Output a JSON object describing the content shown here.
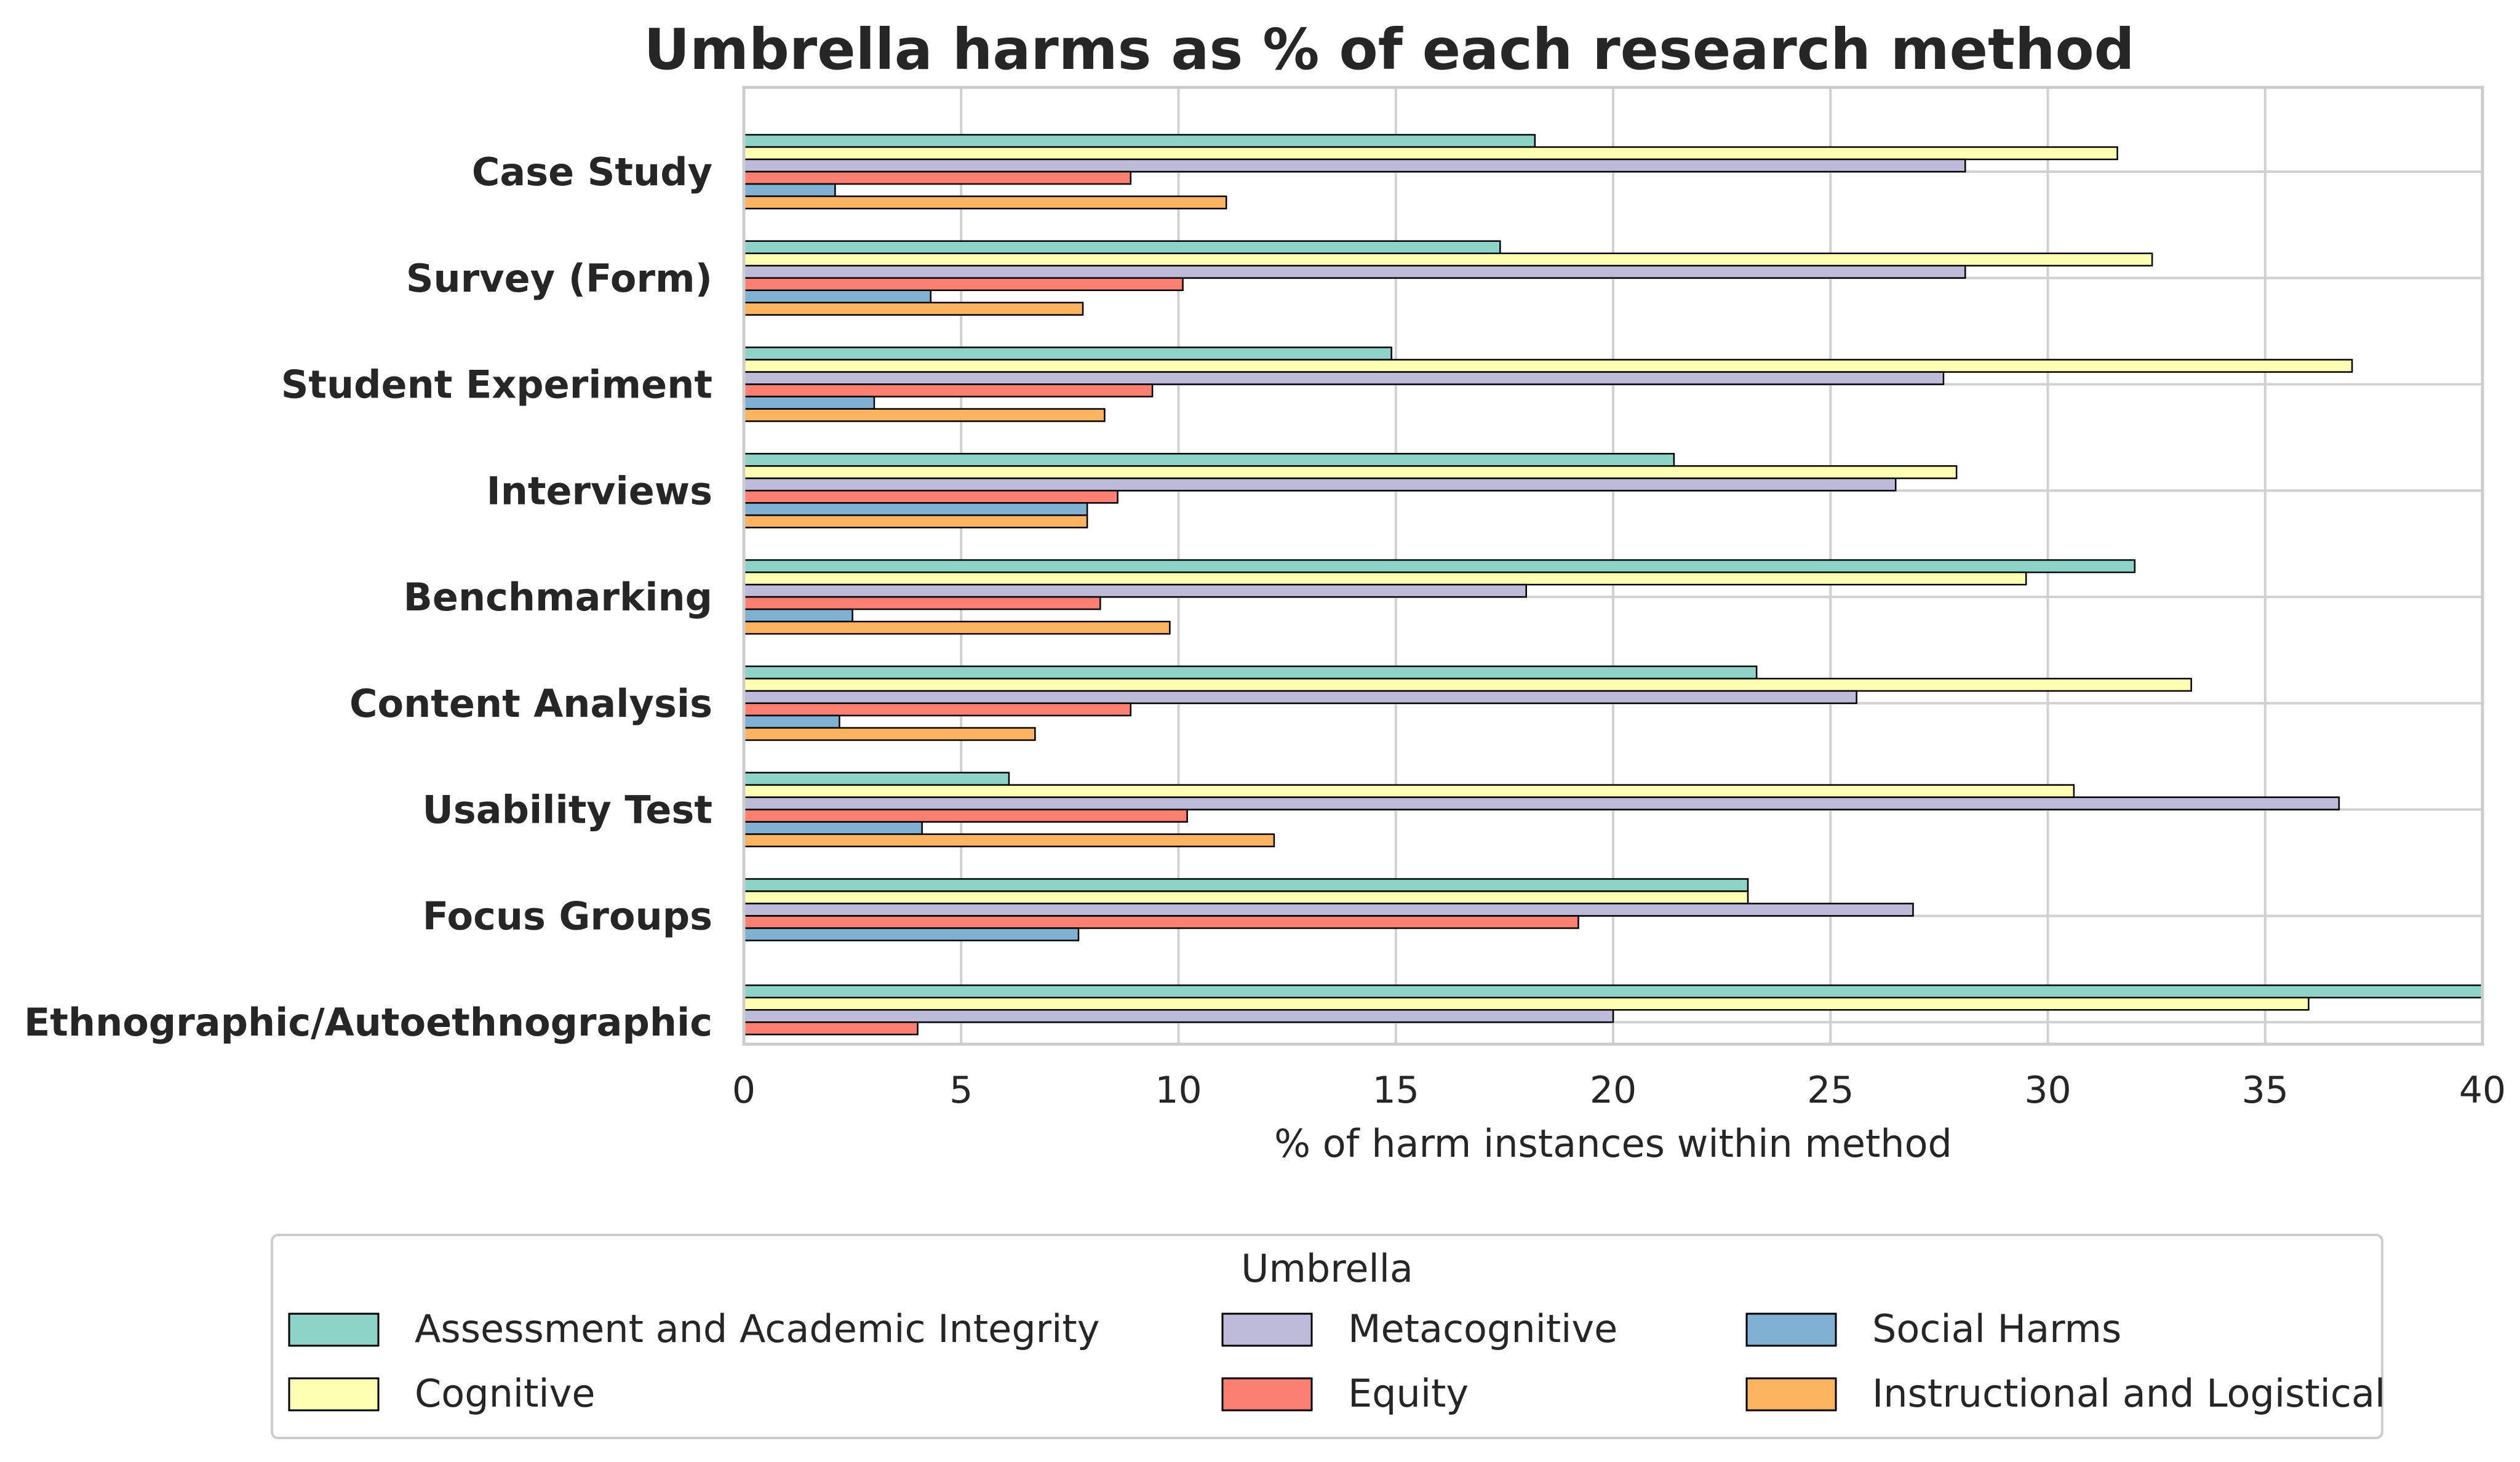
{
  "chart_data": {
    "type": "bar",
    "orientation": "horizontal",
    "title": "Umbrella harms as % of each research method",
    "xlabel": "% of harm instances within method",
    "ylabel": "",
    "xlim": [
      0,
      40
    ],
    "xticks": [
      "0",
      "5",
      "10",
      "15",
      "20",
      "25",
      "30",
      "35",
      "40"
    ],
    "grid": true,
    "categories": [
      "Case Study",
      "Survey (Form)",
      "Student Experiment",
      "Interviews",
      "Benchmarking",
      "Content Analysis",
      "Usability Test",
      "Focus Groups",
      "Ethnographic/Autoethnographic"
    ],
    "legend": {
      "title": "Umbrella",
      "placement": "bottom-center",
      "columns": 3
    },
    "series": [
      {
        "name": "Assessment and Academic Integrity",
        "color": "#8dd3c7",
        "values": [
          18.2,
          17.4,
          14.9,
          21.4,
          32.0,
          23.3,
          6.1,
          23.1,
          40.0
        ]
      },
      {
        "name": "Cognitive",
        "color": "#ffffb3",
        "values": [
          31.6,
          32.4,
          37.0,
          27.9,
          29.5,
          33.3,
          30.6,
          23.1,
          36.0
        ]
      },
      {
        "name": "Metacognitive",
        "color": "#bebada",
        "values": [
          28.1,
          28.1,
          27.6,
          26.5,
          18.0,
          25.6,
          36.7,
          26.9,
          20.0
        ]
      },
      {
        "name": "Equity",
        "color": "#fb8072",
        "values": [
          8.9,
          10.1,
          9.4,
          8.6,
          8.2,
          8.9,
          10.2,
          19.2,
          4.0
        ]
      },
      {
        "name": "Social Harms",
        "color": "#80b1d3",
        "values": [
          2.1,
          4.3,
          3.0,
          7.9,
          2.5,
          2.2,
          4.1,
          7.7,
          0
        ]
      },
      {
        "name": "Instructional and Logistical",
        "color": "#fdb462",
        "values": [
          11.1,
          7.8,
          8.3,
          7.9,
          9.8,
          6.7,
          12.2,
          0,
          0
        ]
      }
    ]
  }
}
